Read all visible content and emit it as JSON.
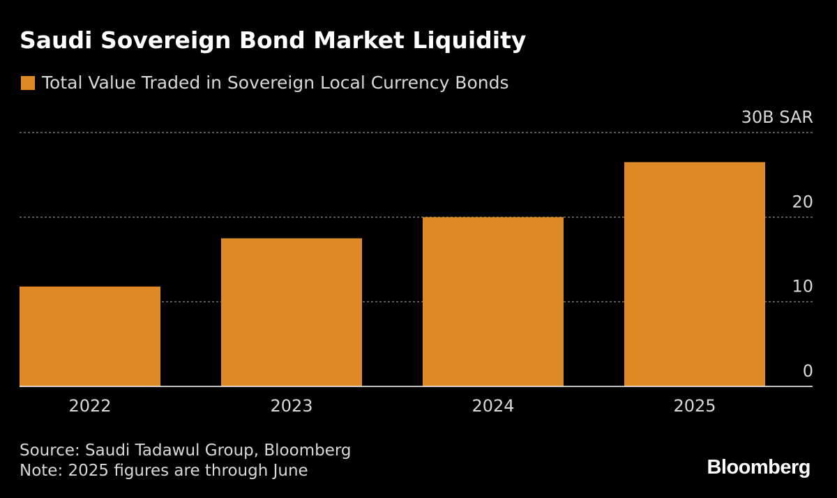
{
  "chart_data": {
    "type": "bar",
    "title": "Saudi Sovereign Bond Market Liquidity",
    "series": [
      {
        "name": "Total Value Traded in Sovereign Local Currency Bonds",
        "color": "#de8a27",
        "values": [
          11.8,
          17.5,
          20.0,
          26.5
        ]
      }
    ],
    "categories": [
      "2022",
      "2023",
      "2024",
      "2025"
    ],
    "ylim": [
      0,
      30
    ],
    "yticks": [
      {
        "value": 0,
        "label": "0"
      },
      {
        "value": 10,
        "label": "10"
      },
      {
        "value": 20,
        "label": "20"
      },
      {
        "value": 30,
        "label": "30B SAR"
      }
    ],
    "grid": true,
    "legend_position": "top-left",
    "colors": {
      "background": "#000000",
      "bar": "#de8a27",
      "grid": "#777777",
      "axis": "#ffffff"
    }
  },
  "footer": {
    "source": "Source: Saudi Tadawul Group, Bloomberg",
    "note": "Note: 2025 figures are through June",
    "logo": "Bloomberg"
  }
}
